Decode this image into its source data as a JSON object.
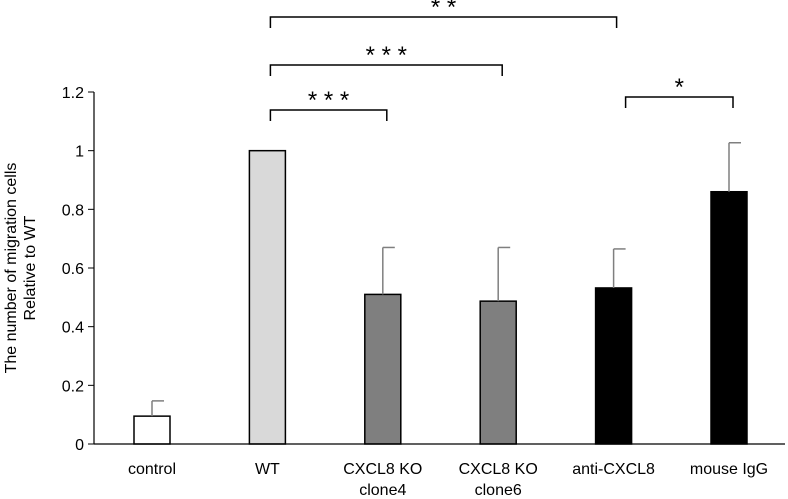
{
  "chart_data": {
    "type": "bar",
    "title": "",
    "xlabel": "",
    "ylabel_lines": [
      "The number of migration cells",
      "Relative to WT"
    ],
    "ylim": [
      0,
      1.2
    ],
    "yticks": [
      0,
      0.2,
      0.4,
      0.6,
      0.8,
      1,
      1.2
    ],
    "ytick_labels": [
      "0",
      "0.2",
      "0.4",
      "0.6",
      "0.8",
      "1",
      "1.2"
    ],
    "categories": [
      [
        "control"
      ],
      [
        "WT"
      ],
      [
        "CXCL8 KO",
        "clone4"
      ],
      [
        "CXCL8 KO",
        "clone6"
      ],
      [
        "anti-CXCL8"
      ],
      [
        "mouse IgG"
      ]
    ],
    "values": [
      0.095,
      1.0,
      0.51,
      0.487,
      0.532,
      0.86
    ],
    "errors": [
      0.052,
      0.0,
      0.16,
      0.183,
      0.133,
      0.167
    ],
    "bar_colors": [
      "#ffffff",
      "#d9d9d9",
      "#7f7f7f",
      "#7f7f7f",
      "#000000",
      "#000000"
    ],
    "error_color": "#7f7f7f",
    "grid": false,
    "significance": [
      {
        "from": 1,
        "to": 2,
        "label": "* * *"
      },
      {
        "from": 1,
        "to": 3,
        "label": "* * *"
      },
      {
        "from": 1,
        "to": 4,
        "label": "* *"
      },
      {
        "from": 4,
        "to": 5,
        "label": "*"
      }
    ]
  }
}
